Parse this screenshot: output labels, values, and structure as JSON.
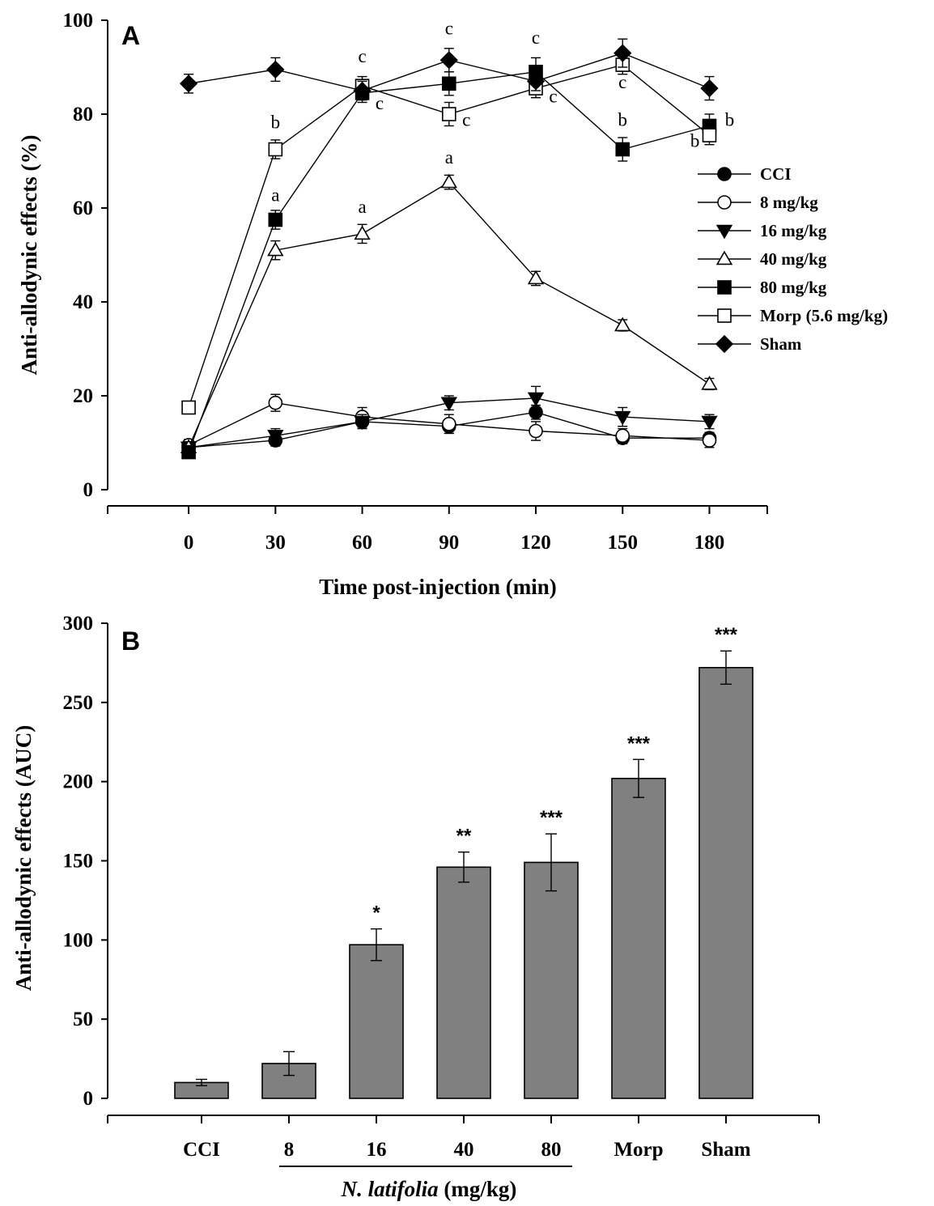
{
  "chart_data": [
    {
      "type": "line",
      "panel_label": "A",
      "xlabel": "Time post-injection (min)",
      "ylabel": "Anti-allodynic effects (%)",
      "x": [
        0,
        30,
        60,
        90,
        120,
        150,
        180
      ],
      "xlim": [
        -28,
        200
      ],
      "ylim": [
        0,
        100
      ],
      "yticks": [
        0,
        20,
        40,
        60,
        80,
        100
      ],
      "legend_position": "right",
      "series": [
        {
          "name": "CCI",
          "marker": "circle",
          "fill": "#000000",
          "values": [
            9,
            10.5,
            14.5,
            13.5,
            16.5,
            11,
            11
          ],
          "errors": [
            1.2,
            1.2,
            1.2,
            1.5,
            1.5,
            1.2,
            1.2
          ]
        },
        {
          "name": "8 mg/kg",
          "marker": "circle",
          "fill": "#ffffff",
          "values": [
            9.5,
            18.5,
            15.5,
            14,
            12.5,
            11.5,
            10.5
          ],
          "errors": [
            1.2,
            1.8,
            2,
            2,
            2,
            1.5,
            1.5
          ]
        },
        {
          "name": "16 mg/kg",
          "marker": "triangle-down",
          "fill": "#000000",
          "values": [
            9,
            11.5,
            14.5,
            18.5,
            19.5,
            15.5,
            14.5
          ],
          "errors": [
            1.2,
            1.5,
            1.5,
            1.5,
            2.5,
            2,
            1.5
          ]
        },
        {
          "name": "40 mg/kg",
          "marker": "triangle-up",
          "fill": "#ffffff",
          "values": [
            9,
            51,
            54.5,
            65.5,
            45,
            35,
            22.5
          ],
          "errors": [
            1.2,
            2,
            2,
            1.5,
            1.5,
            1.2,
            1.2
          ]
        },
        {
          "name": "80 mg/kg",
          "marker": "square",
          "fill": "#000000",
          "values": [
            8,
            57.5,
            84.5,
            86.5,
            89,
            72.5,
            77.5
          ],
          "errors": [
            1.2,
            2,
            2,
            2.5,
            3,
            2.5,
            2.5
          ]
        },
        {
          "name": "Morp (5.6 mg/kg)",
          "marker": "square",
          "fill": "#ffffff",
          "values": [
            17.5,
            72.5,
            86,
            80,
            85.5,
            90.5,
            75.5
          ],
          "errors": [
            1.2,
            2,
            2,
            2.5,
            2,
            2,
            2
          ]
        },
        {
          "name": "Sham",
          "marker": "diamond",
          "fill": "#000000",
          "values": [
            86.5,
            89.5,
            85,
            91.5,
            87,
            93,
            85.5
          ],
          "errors": [
            2,
            2.5,
            2,
            2.5,
            2,
            3,
            2.5
          ]
        }
      ],
      "annotations": [
        {
          "text": "b",
          "x": 30,
          "y": 77
        },
        {
          "text": "a",
          "x": 30,
          "y": 61.5
        },
        {
          "text": "c",
          "x": 60,
          "y": 91
        },
        {
          "text": "c",
          "x": 66,
          "y": 81
        },
        {
          "text": "a",
          "x": 60,
          "y": 59
        },
        {
          "text": "c",
          "x": 90,
          "y": 97
        },
        {
          "text": "a",
          "x": 90,
          "y": 69.5
        },
        {
          "text": "c",
          "x": 96,
          "y": 77.5
        },
        {
          "text": "c",
          "x": 120,
          "y": 95
        },
        {
          "text": "c",
          "x": 126,
          "y": 82.5
        },
        {
          "text": "c",
          "x": 150,
          "y": 85.5
        },
        {
          "text": "b",
          "x": 150,
          "y": 77.5
        },
        {
          "text": "b",
          "x": 187,
          "y": 77.5
        },
        {
          "text": "b",
          "x": 175,
          "y": 73
        }
      ]
    },
    {
      "type": "bar",
      "panel_label": "B",
      "ylabel": "Anti-allodynic effects (AUC)",
      "categories": [
        "CCI",
        "8",
        "16",
        "40",
        "80",
        "Morp",
        "Sham"
      ],
      "values": [
        10,
        22,
        97,
        146,
        149,
        202,
        272
      ],
      "errors": [
        2,
        7.5,
        10,
        9.5,
        18,
        12,
        10.5
      ],
      "significance": [
        "",
        "",
        "*",
        "**",
        "***",
        "***",
        "***"
      ],
      "bar_color": "#808080",
      "ylim": [
        0,
        300
      ],
      "yticks": [
        0,
        50,
        100,
        150,
        200,
        250,
        300
      ],
      "group_label": {
        "italic": "N. latifolia",
        "rest": " (mg/kg)"
      }
    }
  ]
}
